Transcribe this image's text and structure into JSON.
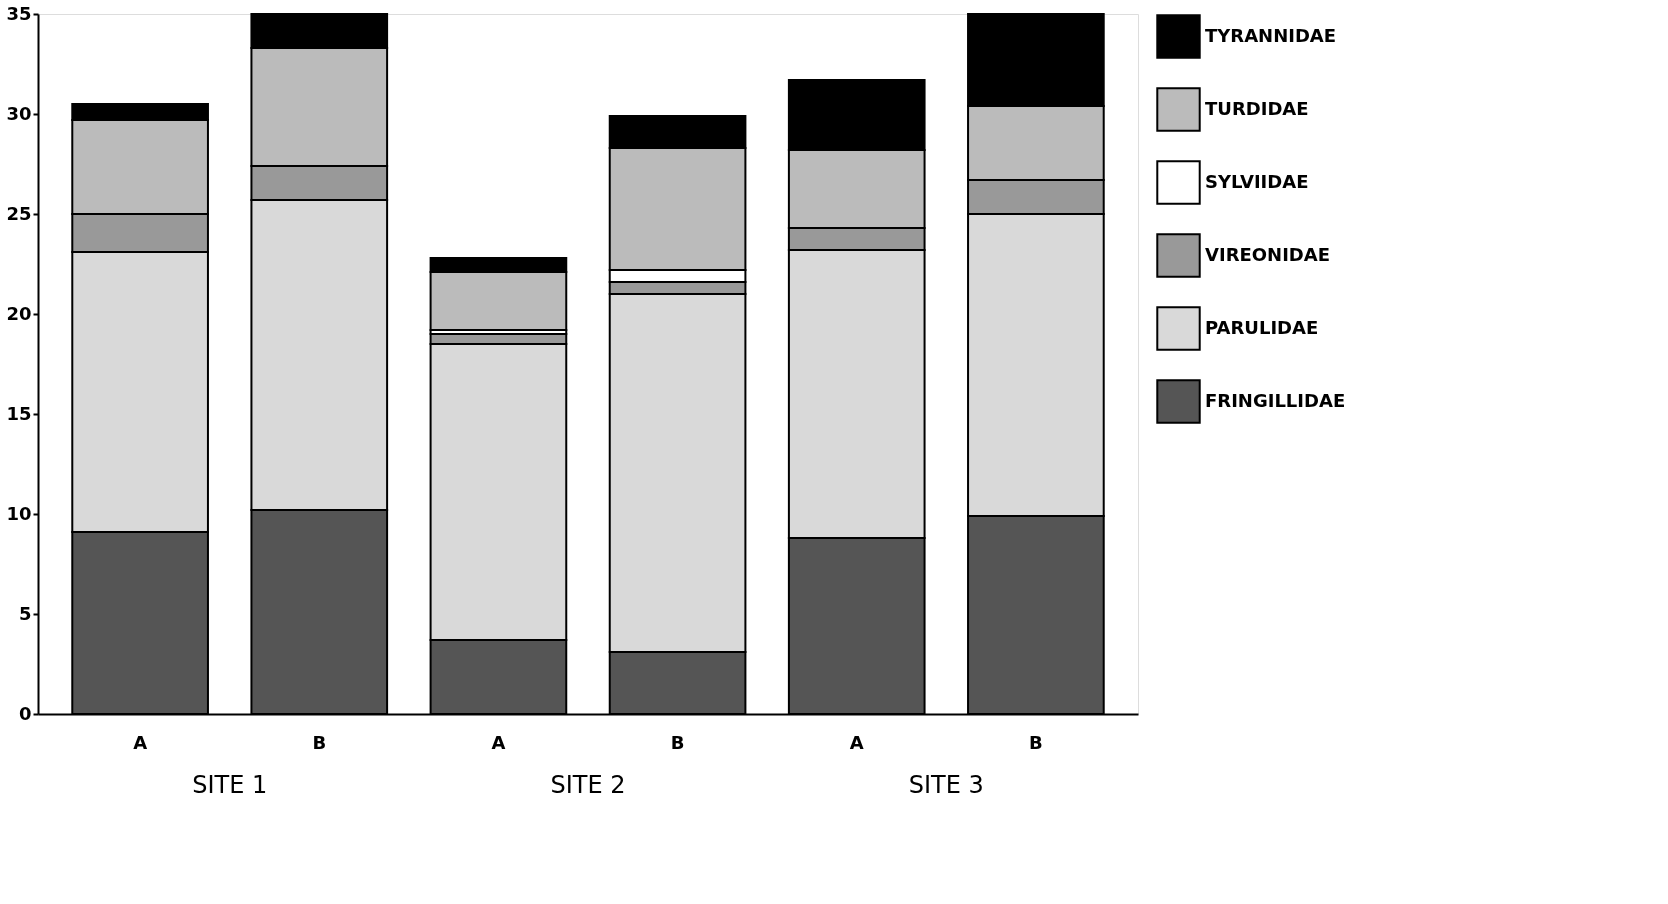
{
  "chart_data": {
    "type": "bar",
    "stacked": true,
    "categories": [
      "A",
      "B",
      "A",
      "B",
      "A",
      "B"
    ],
    "series": [
      {
        "name": "FRINGILLIDAE",
        "color": "#555555",
        "values": [
          9.1,
          10.2,
          3.7,
          3.1,
          8.8,
          9.9
        ]
      },
      {
        "name": "PARULIDAE",
        "color": "#d9d9d9",
        "values": [
          14.0,
          15.5,
          14.8,
          17.9,
          14.4,
          15.1
        ]
      },
      {
        "name": "VIREONIDAE",
        "color": "#999999",
        "values": [
          1.9,
          1.7,
          0.5,
          0.6,
          1.1,
          1.7
        ]
      },
      {
        "name": "SYLVIIDAE",
        "color": "#ffffff",
        "values": [
          0,
          0,
          0.2,
          0.6,
          0,
          0
        ]
      },
      {
        "name": "TURDIDAE",
        "color": "#bbbbbb",
        "values": [
          4.7,
          5.9,
          2.9,
          6.1,
          3.9,
          3.7
        ]
      },
      {
        "name": "TYRANNIDAE",
        "color": "#000000",
        "values": [
          0.8,
          1.7,
          0.7,
          1.6,
          3.5,
          4.6
        ]
      }
    ],
    "ylim": [
      0,
      35
    ],
    "yticks": [
      0,
      5,
      10,
      15,
      20,
      25,
      30,
      35
    ],
    "annotations": [
      "SITE 1",
      "SITE 2",
      "SITE 3"
    ],
    "grid": false,
    "legend": "right"
  }
}
